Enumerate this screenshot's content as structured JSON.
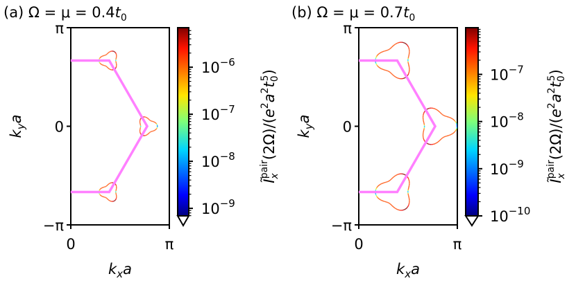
{
  "chart_data": [
    {
      "type": "line",
      "panel": "a",
      "title": {
        "prefix": "(a) Ω = μ = 0.4",
        "var": "t",
        "sub": "0"
      },
      "xlabel": {
        "var": "k",
        "sub": "x",
        "rest": "a"
      },
      "ylabel": {
        "var": "k",
        "sub": "y",
        "rest": "a"
      },
      "xlim_pi": [
        0,
        1
      ],
      "ylim_pi": [
        -1,
        1
      ],
      "xticks": [
        {
          "value_pi": 0,
          "label": "0"
        },
        {
          "value_pi": 1,
          "label": "π"
        }
      ],
      "yticks": [
        {
          "value_pi": -1,
          "label": "−π"
        },
        {
          "value_pi": 0,
          "label": "0"
        },
        {
          "value_pi": 1,
          "label": "π"
        }
      ],
      "bz_boundary_pi": [
        [
          0,
          0.667
        ],
        [
          0.39,
          0.667
        ],
        [
          0.775,
          0
        ],
        [
          0.39,
          -0.667
        ],
        [
          0,
          -0.667
        ]
      ],
      "bz_color": "#ff80ff",
      "fermi_loops_pi": [
        {
          "center": [
            0.39,
            0.667
          ],
          "radius": 0.085,
          "tip": "left"
        },
        {
          "center": [
            0.775,
            0
          ],
          "radius": 0.085,
          "tip": "right"
        },
        {
          "center": [
            0.39,
            -0.667
          ],
          "radius": 0.085,
          "tip": "left"
        }
      ],
      "colorbar": {
        "colormap": "jet",
        "scale": "log",
        "range_log10": [
          -9.16,
          -5.16
        ],
        "extend": "min",
        "ticks": [
          {
            "base": "10",
            "exp": "−6",
            "log10": -6
          },
          {
            "base": "10",
            "exp": "−7",
            "log10": -7
          },
          {
            "base": "10",
            "exp": "−8",
            "log10": -8
          },
          {
            "base": "10",
            "exp": "−9",
            "log10": -9
          }
        ],
        "label": {
          "base": "Ĩ",
          "sub": "x",
          "sup": "pair",
          "rest1": "(2Ω)/(",
          "e": "e",
          "e_sup": "2",
          "a": "a",
          "a_sup": "2",
          "t": "t",
          "t_sub": "0",
          "t_sup": "5",
          "rest2": ")"
        }
      }
    },
    {
      "type": "line",
      "panel": "b",
      "title": {
        "prefix": "(b) Ω = μ = 0.7",
        "var": "t",
        "sub": "0"
      },
      "xlabel": {
        "var": "k",
        "sub": "x",
        "rest": "a"
      },
      "ylabel": {
        "var": "k",
        "sub": "y",
        "rest": "a"
      },
      "xlim_pi": [
        0,
        1
      ],
      "ylim_pi": [
        -1,
        1
      ],
      "xticks": [
        {
          "value_pi": 0,
          "label": "0"
        },
        {
          "value_pi": 1,
          "label": "π"
        }
      ],
      "yticks": [
        {
          "value_pi": -1,
          "label": "−π"
        },
        {
          "value_pi": 0,
          "label": "0"
        },
        {
          "value_pi": 1,
          "label": "π"
        }
      ],
      "bz_boundary_pi": [
        [
          0,
          0.667
        ],
        [
          0.39,
          0.667
        ],
        [
          0.775,
          0
        ],
        [
          0.39,
          -0.667
        ],
        [
          0,
          -0.667
        ]
      ],
      "bz_color": "#ff80ff",
      "fermi_loops_pi": [
        {
          "center": [
            0.37,
            0.667
          ],
          "radius": 0.165,
          "tip": "left"
        },
        {
          "center": [
            0.795,
            0
          ],
          "radius": 0.165,
          "tip": "right"
        },
        {
          "center": [
            0.37,
            -0.667
          ],
          "radius": 0.165,
          "tip": "left"
        }
      ],
      "colorbar": {
        "colormap": "jet",
        "scale": "log",
        "range_log10": [
          -10,
          -6.01
        ],
        "extend": "min",
        "ticks": [
          {
            "base": "10",
            "exp": "−7",
            "log10": -7
          },
          {
            "base": "10",
            "exp": "−8",
            "log10": -8
          },
          {
            "base": "10",
            "exp": "−9",
            "log10": -9
          },
          {
            "base": "10",
            "exp": "−10",
            "log10": -10
          }
        ],
        "label": {
          "base": "Ĩ",
          "sub": "x",
          "sup": "pair",
          "rest1": "(2Ω)/(",
          "e": "e",
          "e_sup": "2",
          "a": "a",
          "a_sup": "2",
          "t": "t",
          "t_sub": "0",
          "t_sup": "5",
          "rest2": ")"
        }
      }
    }
  ]
}
